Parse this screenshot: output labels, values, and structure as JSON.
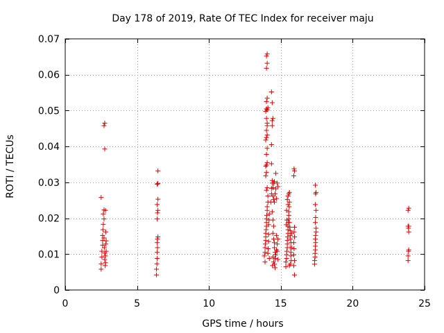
{
  "chart_data": {
    "type": "scatter",
    "title": "Day 178 of 2019, Rate Of TEC Index for receiver maju",
    "xlabel": "GPS time / hours",
    "ylabel": "ROTI / TECUs",
    "xlim": [
      0,
      25
    ],
    "ylim": [
      0,
      0.07
    ],
    "grid": true,
    "marker": "plus",
    "marker_color": "#dd0000",
    "grid_color": "#a0a0a0",
    "x_ticks": [
      0,
      5,
      10,
      15,
      20,
      25
    ],
    "x_tick_labels": [
      "0",
      "5",
      "10",
      "15",
      "20",
      "25"
    ],
    "y_ticks": [
      0,
      0.01,
      0.02,
      0.03,
      0.04,
      0.05,
      0.06,
      0.07
    ],
    "y_tick_labels": [
      "0",
      "0.01",
      "0.02",
      "0.03",
      "0.04",
      "0.05",
      "0.06",
      "0.07"
    ],
    "series": [
      {
        "name": "ROTI",
        "points": [
          [
            2.5,
            0.0058
          ],
          [
            2.5,
            0.0073
          ],
          [
            2.55,
            0.0092
          ],
          [
            2.55,
            0.0108
          ],
          [
            2.6,
            0.0125
          ],
          [
            2.6,
            0.0138
          ],
          [
            2.6,
            0.0152
          ],
          [
            2.62,
            0.0168
          ],
          [
            2.65,
            0.0183
          ],
          [
            2.5,
            0.0258
          ],
          [
            2.65,
            0.0212
          ],
          [
            2.7,
            0.0223
          ],
          [
            2.7,
            0.0198
          ],
          [
            2.7,
            0.0145
          ],
          [
            2.72,
            0.0118
          ],
          [
            2.75,
            0.0103
          ],
          [
            2.75,
            0.0085
          ],
          [
            2.78,
            0.0068
          ],
          [
            2.8,
            0.0076
          ],
          [
            2.8,
            0.0095
          ],
          [
            2.82,
            0.0128
          ],
          [
            2.82,
            0.0162
          ],
          [
            2.8,
            0.0222
          ],
          [
            2.75,
            0.0393
          ],
          [
            2.7,
            0.0458
          ],
          [
            2.75,
            0.0465
          ],
          [
            2.85,
            0.0108
          ],
          [
            2.85,
            0.0137
          ],
          [
            6.35,
            0.0042
          ],
          [
            6.35,
            0.0058
          ],
          [
            6.38,
            0.0073
          ],
          [
            6.4,
            0.0088
          ],
          [
            6.4,
            0.0105
          ],
          [
            6.42,
            0.0118
          ],
          [
            6.4,
            0.0132
          ],
          [
            6.42,
            0.0142
          ],
          [
            6.45,
            0.0148
          ],
          [
            6.4,
            0.0198
          ],
          [
            6.42,
            0.0215
          ],
          [
            6.45,
            0.0222
          ],
          [
            6.4,
            0.0238
          ],
          [
            6.45,
            0.0253
          ],
          [
            6.4,
            0.0295
          ],
          [
            6.45,
            0.0297
          ],
          [
            6.45,
            0.0332
          ],
          [
            13.85,
            0.0095
          ],
          [
            13.9,
            0.0105
          ],
          [
            13.9,
            0.0118
          ],
          [
            13.92,
            0.0128
          ],
          [
            13.95,
            0.0138
          ],
          [
            13.95,
            0.0148
          ],
          [
            13.95,
            0.0158
          ],
          [
            13.98,
            0.0168
          ],
          [
            14.0,
            0.0178
          ],
          [
            14.0,
            0.0188
          ],
          [
            14.0,
            0.0198
          ],
          [
            14.02,
            0.0208
          ],
          [
            14.05,
            0.0222
          ],
          [
            14.05,
            0.0232
          ],
          [
            14.1,
            0.0245
          ],
          [
            14.1,
            0.0262
          ],
          [
            14.0,
            0.0278
          ],
          [
            14.05,
            0.0285
          ],
          [
            13.95,
            0.0318
          ],
          [
            14.0,
            0.0328
          ],
          [
            13.95,
            0.0345
          ],
          [
            14.0,
            0.0348
          ],
          [
            14.05,
            0.0355
          ],
          [
            14.0,
            0.0378
          ],
          [
            14.05,
            0.0395
          ],
          [
            13.95,
            0.0418
          ],
          [
            14.0,
            0.0425
          ],
          [
            14.05,
            0.0432
          ],
          [
            14.0,
            0.0445
          ],
          [
            14.05,
            0.0458
          ],
          [
            14.05,
            0.0465
          ],
          [
            14.0,
            0.0478
          ],
          [
            13.95,
            0.0498
          ],
          [
            14.0,
            0.0505
          ],
          [
            14.05,
            0.0502
          ],
          [
            14.1,
            0.0508
          ],
          [
            14.0,
            0.0525
          ],
          [
            14.05,
            0.0535
          ],
          [
            14.0,
            0.0618
          ],
          [
            14.05,
            0.0632
          ],
          [
            14.0,
            0.0652
          ],
          [
            14.05,
            0.0658
          ],
          [
            14.1,
            0.0102
          ],
          [
            14.12,
            0.0115
          ],
          [
            14.15,
            0.0135
          ],
          [
            14.15,
            0.0155
          ],
          [
            14.15,
            0.0182
          ],
          [
            14.18,
            0.0195
          ],
          [
            14.2,
            0.0212
          ],
          [
            14.2,
            0.0088
          ],
          [
            13.9,
            0.0078
          ],
          [
            14.3,
            0.0245
          ],
          [
            14.35,
            0.0268
          ],
          [
            14.35,
            0.0283
          ],
          [
            14.4,
            0.0298
          ],
          [
            14.4,
            0.0305
          ],
          [
            14.35,
            0.0352
          ],
          [
            14.35,
            0.0405
          ],
          [
            14.4,
            0.0458
          ],
          [
            14.4,
            0.0472
          ],
          [
            14.45,
            0.0478
          ],
          [
            14.4,
            0.0522
          ],
          [
            14.35,
            0.0552
          ],
          [
            14.45,
            0.0262
          ],
          [
            14.45,
            0.0285
          ],
          [
            14.5,
            0.0298
          ],
          [
            14.55,
            0.0302
          ],
          [
            14.5,
            0.0252
          ],
          [
            14.55,
            0.0245
          ],
          [
            14.6,
            0.0268
          ],
          [
            14.65,
            0.0282
          ],
          [
            14.65,
            0.0325
          ],
          [
            14.7,
            0.0255
          ],
          [
            14.75,
            0.0298
          ],
          [
            14.8,
            0.0288
          ],
          [
            14.4,
            0.0218
          ],
          [
            14.45,
            0.0195
          ],
          [
            14.5,
            0.0178
          ],
          [
            14.45,
            0.0158
          ],
          [
            14.5,
            0.0142
          ],
          [
            14.55,
            0.0132
          ],
          [
            14.55,
            0.0118
          ],
          [
            14.6,
            0.0105
          ],
          [
            14.45,
            0.0092
          ],
          [
            14.5,
            0.0078
          ],
          [
            14.55,
            0.0072
          ],
          [
            14.6,
            0.0088
          ],
          [
            14.65,
            0.0098
          ],
          [
            14.7,
            0.0112
          ],
          [
            14.75,
            0.0128
          ],
          [
            14.8,
            0.0142
          ],
          [
            14.7,
            0.0152
          ],
          [
            14.75,
            0.0108
          ],
          [
            14.8,
            0.0085
          ],
          [
            14.6,
            0.0062
          ],
          [
            14.42,
            0.0068
          ],
          [
            15.35,
            0.0065
          ],
          [
            15.35,
            0.0078
          ],
          [
            15.4,
            0.0088
          ],
          [
            15.4,
            0.0098
          ],
          [
            15.42,
            0.0108
          ],
          [
            15.45,
            0.0118
          ],
          [
            15.45,
            0.0128
          ],
          [
            15.45,
            0.0138
          ],
          [
            15.48,
            0.0148
          ],
          [
            15.5,
            0.0158
          ],
          [
            15.5,
            0.0168
          ],
          [
            15.5,
            0.0178
          ],
          [
            15.52,
            0.0188
          ],
          [
            15.55,
            0.0198
          ],
          [
            15.55,
            0.0208
          ],
          [
            15.55,
            0.0218
          ],
          [
            15.58,
            0.0232
          ],
          [
            15.6,
            0.0245
          ],
          [
            15.5,
            0.0262
          ],
          [
            15.55,
            0.0268
          ],
          [
            15.6,
            0.0272
          ],
          [
            15.45,
            0.0252
          ],
          [
            15.5,
            0.0238
          ],
          [
            15.4,
            0.0222
          ],
          [
            15.6,
            0.0188
          ],
          [
            15.62,
            0.0175
          ],
          [
            15.65,
            0.0165
          ],
          [
            15.65,
            0.0152
          ],
          [
            15.68,
            0.0142
          ],
          [
            15.7,
            0.0132
          ],
          [
            15.65,
            0.0118
          ],
          [
            15.7,
            0.0105
          ],
          [
            15.7,
            0.0095
          ],
          [
            15.72,
            0.0082
          ],
          [
            15.65,
            0.0072
          ],
          [
            15.6,
            0.0068
          ],
          [
            15.38,
            0.0182
          ],
          [
            15.42,
            0.0195
          ],
          [
            15.75,
            0.0118
          ],
          [
            15.75,
            0.0158
          ],
          [
            15.95,
            0.0042
          ],
          [
            15.9,
            0.0098
          ],
          [
            15.92,
            0.0115
          ],
          [
            15.9,
            0.0132
          ],
          [
            15.95,
            0.0148
          ],
          [
            15.92,
            0.0162
          ],
          [
            15.95,
            0.0175
          ],
          [
            15.9,
            0.0318
          ],
          [
            15.95,
            0.0332
          ],
          [
            15.92,
            0.0338
          ],
          [
            15.95,
            0.0082
          ],
          [
            15.9,
            0.0068
          ],
          [
            17.35,
            0.0072
          ],
          [
            17.35,
            0.0082
          ],
          [
            17.38,
            0.0092
          ],
          [
            17.38,
            0.0102
          ],
          [
            17.4,
            0.0112
          ],
          [
            17.4,
            0.0122
          ],
          [
            17.42,
            0.0132
          ],
          [
            17.4,
            0.0142
          ],
          [
            17.42,
            0.0152
          ],
          [
            17.45,
            0.0162
          ],
          [
            17.45,
            0.0172
          ],
          [
            17.4,
            0.0188
          ],
          [
            17.42,
            0.0202
          ],
          [
            17.45,
            0.0222
          ],
          [
            17.4,
            0.0238
          ],
          [
            17.42,
            0.0268
          ],
          [
            17.45,
            0.0272
          ],
          [
            17.4,
            0.0292
          ],
          [
            23.85,
            0.0082
          ],
          [
            23.85,
            0.0095
          ],
          [
            23.88,
            0.0108
          ],
          [
            23.9,
            0.0112
          ],
          [
            23.9,
            0.0162
          ],
          [
            23.88,
            0.0172
          ],
          [
            23.85,
            0.0178
          ],
          [
            23.9,
            0.0178
          ],
          [
            23.85,
            0.0222
          ],
          [
            23.9,
            0.0228
          ]
        ]
      }
    ]
  }
}
